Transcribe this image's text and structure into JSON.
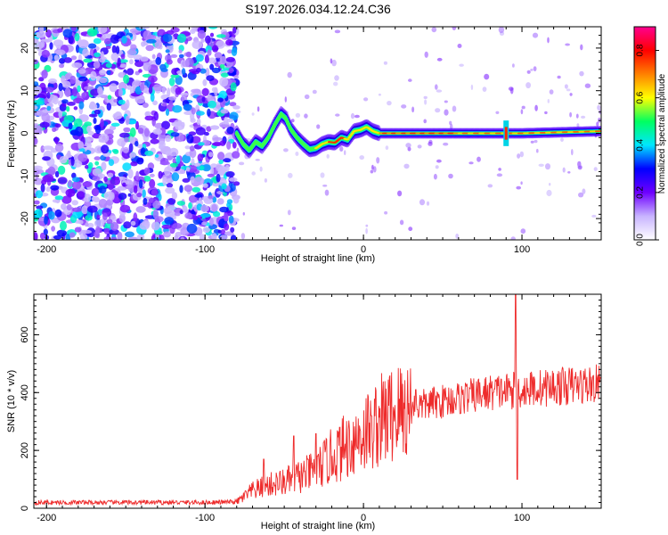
{
  "title": "S197.2026.034.12.24.C36",
  "colors": {
    "snr_line": "#ee2b2b",
    "axis": "#000000",
    "background": "#ffffff"
  },
  "chart_data": [
    {
      "type": "heatmap",
      "name": "spectrogram",
      "xlabel": "Height of straight line (km)",
      "ylabel": "Frequency (Hz)",
      "xlim": [
        -208,
        150
      ],
      "ylim": [
        -25,
        25
      ],
      "xticks": [
        -200,
        -100,
        0,
        100
      ],
      "yticks": [
        -20,
        -10,
        0,
        10,
        20
      ],
      "xtick_labels": [
        "-200",
        "-100",
        "0",
        "100"
      ],
      "ytick_labels": [
        "-20",
        "-10",
        "0",
        "10",
        "20"
      ],
      "colorbar": {
        "label": "Normalized spectral amplitude",
        "range": [
          0.0,
          0.9
        ],
        "ticks": [
          0.0,
          0.2,
          0.4,
          0.6,
          0.8
        ],
        "tick_labels": [
          "0.0",
          "0.2",
          "0.4",
          "0.6",
          "0.8"
        ],
        "colors": [
          "#ffffff",
          "#c8b4ff",
          "#6e00ff",
          "#0000ff",
          "#00e6ff",
          "#00ff60",
          "#ffff00",
          "#ff8000",
          "#ff0000",
          "#ff0090"
        ]
      },
      "noise_region_x": [
        -208,
        -80
      ],
      "signal_track": [
        {
          "x": -80,
          "f": 0.0
        },
        {
          "x": -76,
          "f": -2.5
        },
        {
          "x": -72,
          "f": -4.0
        },
        {
          "x": -68,
          "f": -2.0
        },
        {
          "x": -64,
          "f": -3.0
        },
        {
          "x": -60,
          "f": -1.0
        },
        {
          "x": -56,
          "f": 2.0
        },
        {
          "x": -52,
          "f": 4.5
        },
        {
          "x": -49,
          "f": 3.5
        },
        {
          "x": -46,
          "f": 1.0
        },
        {
          "x": -42,
          "f": -1.0
        },
        {
          "x": -38,
          "f": -2.5
        },
        {
          "x": -34,
          "f": -3.8
        },
        {
          "x": -30,
          "f": -3.5
        },
        {
          "x": -26,
          "f": -2.5
        },
        {
          "x": -22,
          "f": -2.0
        },
        {
          "x": -18,
          "f": -2.2
        },
        {
          "x": -14,
          "f": -1.0
        },
        {
          "x": -10,
          "f": -1.5
        },
        {
          "x": -6,
          "f": 0.5
        },
        {
          "x": -2,
          "f": 0.8
        },
        {
          "x": 2,
          "f": 1.5
        },
        {
          "x": 6,
          "f": 0.5
        },
        {
          "x": 10,
          "f": 0.0
        },
        {
          "x": 40,
          "f": 0.0
        },
        {
          "x": 80,
          "f": 0.0
        },
        {
          "x": 100,
          "f": 0.0
        },
        {
          "x": 130,
          "f": 0.3
        },
        {
          "x": 150,
          "f": 0.5
        }
      ],
      "track_peak_amplitude": 0.9,
      "vertical_feature_x": 90
    },
    {
      "type": "line",
      "name": "snr",
      "xlabel": "Height of straight line (km)",
      "ylabel": "SNR (10 * v/v)",
      "xlim": [
        -208,
        150
      ],
      "ylim": [
        0,
        740
      ],
      "xticks": [
        -200,
        -100,
        0,
        100
      ],
      "yticks": [
        0,
        200,
        400,
        600
      ],
      "xtick_labels": [
        "-200",
        "-100",
        "0",
        "100"
      ],
      "ytick_labels": [
        "0",
        "200",
        "400",
        "600"
      ],
      "series": [
        {
          "name": "SNR",
          "trend": [
            {
              "x": -208,
              "y": 20
            },
            {
              "x": -100,
              "y": 20
            },
            {
              "x": -80,
              "y": 22
            },
            {
              "x": -70,
              "y": 60
            },
            {
              "x": -60,
              "y": 80
            },
            {
              "x": -50,
              "y": 90
            },
            {
              "x": -40,
              "y": 110
            },
            {
              "x": -30,
              "y": 130
            },
            {
              "x": -20,
              "y": 180
            },
            {
              "x": -10,
              "y": 220
            },
            {
              "x": 0,
              "y": 260
            },
            {
              "x": 10,
              "y": 300
            },
            {
              "x": 20,
              "y": 330
            },
            {
              "x": 40,
              "y": 360
            },
            {
              "x": 60,
              "y": 380
            },
            {
              "x": 80,
              "y": 400
            },
            {
              "x": 100,
              "y": 410
            },
            {
              "x": 120,
              "y": 420
            },
            {
              "x": 150,
              "y": 430
            }
          ],
          "spikes": [
            {
              "x": -63,
              "y": 170
            },
            {
              "x": -44,
              "y": 250
            },
            {
              "x": -30,
              "y": 258
            },
            {
              "x": -15,
              "y": 280
            },
            {
              "x": 5,
              "y": 320
            },
            {
              "x": 33,
              "y": 410
            },
            {
              "x": 96,
              "y": 740
            },
            {
              "x": 97,
              "y": 100
            }
          ]
        }
      ]
    }
  ]
}
